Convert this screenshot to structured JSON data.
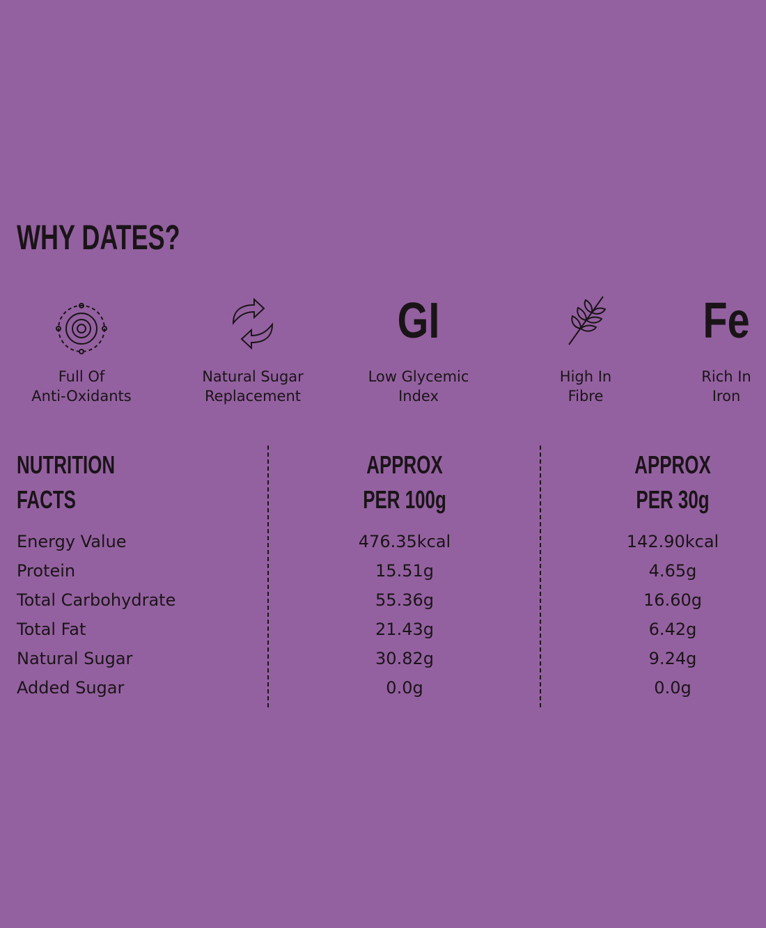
{
  "title": "WHY DATES?",
  "features": [
    {
      "label": [
        "Full Of",
        "Anti-Oxidants"
      ]
    },
    {
      "label": [
        "Natural Sugar",
        "Replacement"
      ]
    },
    {
      "icon_text": "GI",
      "label": [
        "Low Glycemic",
        "Index"
      ]
    },
    {
      "label": [
        "High In",
        "Fibre"
      ]
    },
    {
      "icon_text": "Fe",
      "label": [
        "Rich In",
        "Iron"
      ]
    }
  ],
  "table": {
    "headers": [
      [
        "NUTRITION",
        "FACTS"
      ],
      [
        "APPROX",
        "PER 100g"
      ],
      [
        "APPROX",
        "PER 30g"
      ]
    ],
    "rows": [
      [
        "Energy Value",
        "476.35kcal",
        "142.90kcal"
      ],
      [
        "Protein",
        "15.51g",
        "4.65g"
      ],
      [
        "Total Carbohydrate",
        "55.36g",
        "16.60g"
      ],
      [
        "Total Fat",
        "21.43g",
        "6.42g"
      ],
      [
        "Natural Sugar",
        "30.82g",
        "9.24g"
      ],
      [
        "Added Sugar",
        "0.0g",
        "0.0g"
      ]
    ]
  }
}
